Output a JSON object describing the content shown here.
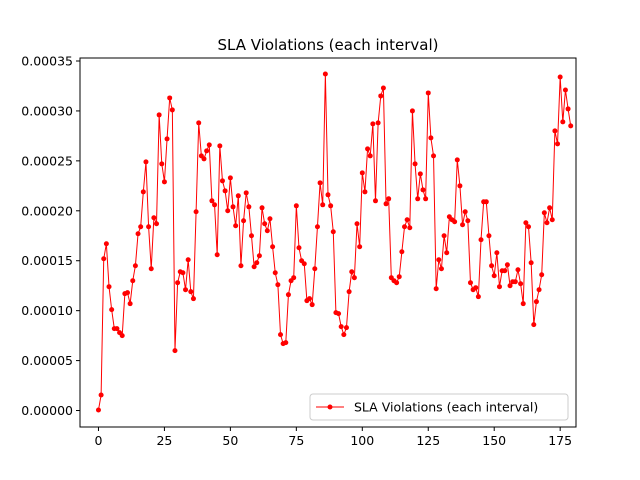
{
  "chart_data": {
    "type": "line",
    "title": "SLA Violations  (each interval)",
    "xlabel": "",
    "ylabel": "",
    "xlim": [
      -7,
      181
    ],
    "ylim": [
      -1.65e-05,
      0.000353
    ],
    "x_ticks": [
      0,
      25,
      50,
      75,
      100,
      125,
      150,
      175
    ],
    "x_tick_labels": [
      "0",
      "25",
      "50",
      "75",
      "100",
      "125",
      "150",
      "175"
    ],
    "y_ticks": [
      0,
      5e-05,
      0.0001,
      0.00015,
      0.0002,
      0.00025,
      0.0003,
      0.00035
    ],
    "y_tick_labels": [
      "0.00000",
      "0.00005",
      "0.00010",
      "0.00015",
      "0.00020",
      "0.00025",
      "0.00030",
      "0.00035"
    ],
    "grid": false,
    "legend_position": "lower-right",
    "color": "#ff0000",
    "series": [
      {
        "name": "SLA Violations  (each interval)",
        "x_start": 0,
        "x_step": 1,
        "values": [
          5e-07,
          1.55e-05,
          0.000152,
          0.000167,
          0.000124,
          0.000101,
          8.2e-05,
          8.2e-05,
          7.8e-05,
          7.5e-05,
          0.000117,
          0.000118,
          0.000107,
          0.00013,
          0.000145,
          0.000177,
          0.000184,
          0.000219,
          0.000249,
          0.000184,
          0.000142,
          0.000193,
          0.000187,
          0.000296,
          0.000247,
          0.000229,
          0.000272,
          0.000313,
          0.000301,
          6e-05,
          0.000128,
          0.000139,
          0.000138,
          0.000121,
          0.000151,
          0.000119,
          0.000112,
          0.000199,
          0.000288,
          0.000255,
          0.000252,
          0.00026,
          0.000266,
          0.00021,
          0.000206,
          0.000156,
          0.000265,
          0.00023,
          0.00022,
          0.0002,
          0.000233,
          0.000204,
          0.000185,
          0.000215,
          0.000145,
          0.00019,
          0.000218,
          0.000204,
          0.000175,
          0.000144,
          0.000148,
          0.000155,
          0.000203,
          0.000187,
          0.00018,
          0.000192,
          0.000164,
          0.000138,
          0.000126,
          7.6e-05,
          6.7e-05,
          6.8e-05,
          0.000116,
          0.00013,
          0.000133,
          0.000205,
          0.000163,
          0.00015,
          0.000147,
          0.00011,
          0.000112,
          0.000106,
          0.000142,
          0.000184,
          0.000228,
          0.000206,
          0.000337,
          0.000216,
          0.000205,
          0.000179,
          9.8e-05,
          9.7e-05,
          8.4e-05,
          7.6e-05,
          8.3e-05,
          0.000119,
          0.000139,
          0.000133,
          0.000187,
          0.000164,
          0.000238,
          0.000219,
          0.000262,
          0.000255,
          0.000287,
          0.00021,
          0.000288,
          0.000315,
          0.000323,
          0.000207,
          0.000212,
          0.000133,
          0.00013,
          0.000128,
          0.000134,
          0.000159,
          0.000184,
          0.000191,
          0.000183,
          0.0003,
          0.000247,
          0.000212,
          0.000237,
          0.000221,
          0.000212,
          0.000318,
          0.000273,
          0.000255,
          0.000122,
          0.000151,
          0.000142,
          0.000175,
          0.000158,
          0.000194,
          0.000191,
          0.000189,
          0.000251,
          0.000225,
          0.000186,
          0.000199,
          0.00019,
          0.000128,
          0.000121,
          0.000123,
          0.000114,
          0.000171,
          0.000209,
          0.000209,
          0.000175,
          0.000145,
          0.000135,
          0.000158,
          0.000124,
          0.00014,
          0.00014,
          0.000146,
          0.000125,
          0.000129,
          0.000129,
          0.000141,
          0.000127,
          0.000107,
          0.000188,
          0.000184,
          0.000148,
          8.6e-05,
          0.000109,
          0.000121,
          0.000136,
          0.000198,
          0.000188,
          0.000203,
          0.000191,
          0.00028,
          0.000267,
          0.000334,
          0.000289,
          0.000321,
          0.000302,
          0.000285
        ]
      }
    ]
  }
}
